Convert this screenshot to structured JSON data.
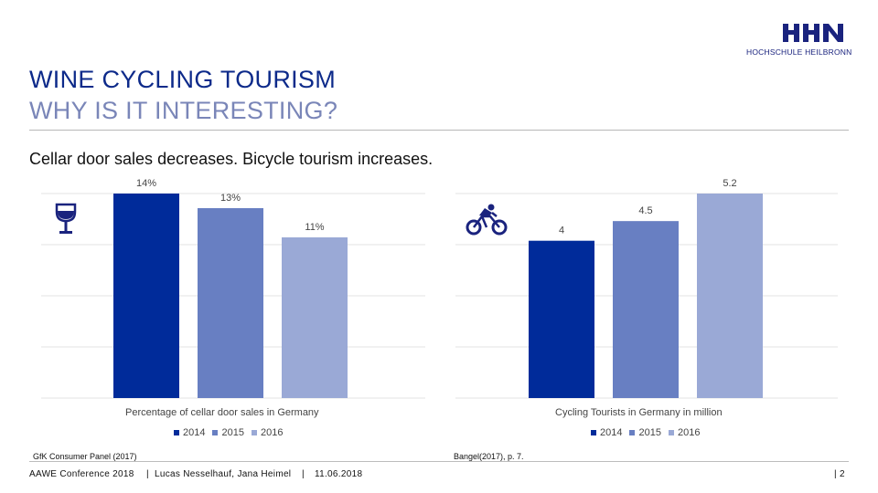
{
  "branding": {
    "logo_text": "HHN",
    "institution": "HOCHSCHULE HEILBRONN"
  },
  "header": {
    "title_line1": "WINE CYCLING TOURISM",
    "title_line2": "WHY IS IT INTERESTING?"
  },
  "subtitle": "Cellar door sales decreases. Bicycle tourism increases.",
  "colors": {
    "c2014": "#002b9a",
    "c2015": "#687fc2",
    "c2016": "#9aa9d6",
    "title": "#0d2a8a"
  },
  "chart_data": [
    {
      "type": "bar",
      "icon": "wine-glass-icon",
      "title": "",
      "xlabel": "Percentage of cellar door sales in Germany",
      "categories": [
        "2014",
        "2015",
        "2016"
      ],
      "values": [
        14,
        13,
        11
      ],
      "data_labels": [
        "14%",
        "13%",
        "11%"
      ],
      "ylim": [
        0,
        14
      ],
      "grid": true,
      "legend": [
        "2014",
        "2015",
        "2016"
      ],
      "source": "GfK Consumer Panel (2017)"
    },
    {
      "type": "bar",
      "icon": "cyclist-icon",
      "title": "",
      "xlabel": "Cycling Tourists in Germany in million",
      "categories": [
        "2014",
        "2015",
        "2016"
      ],
      "values": [
        4,
        4.5,
        5.2
      ],
      "data_labels": [
        "4",
        "4.5",
        "5.2"
      ],
      "ylim": [
        0,
        5.2
      ],
      "grid": true,
      "legend": [
        "2014",
        "2015",
        "2016"
      ],
      "source": "Bangel(2017), p. 7."
    }
  ],
  "footer": {
    "conference": "AAWE Conference 2018",
    "authors": "Lucas Nesselhauf, Jana Heimel",
    "date": "11.06.2018",
    "page": "| 2",
    "separator": "|"
  }
}
